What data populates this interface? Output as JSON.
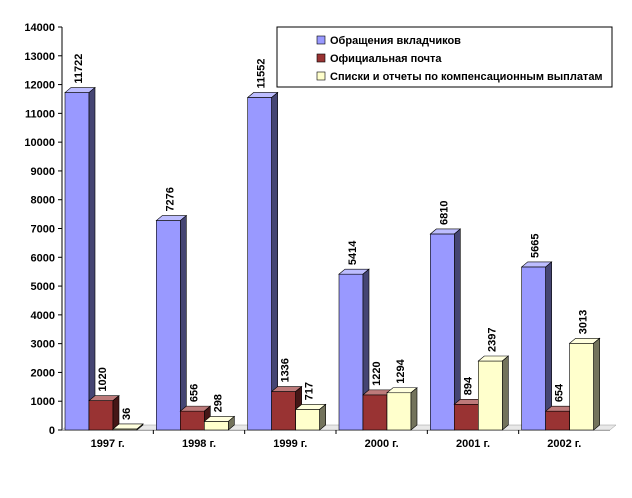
{
  "chart_data": {
    "type": "bar",
    "title": "",
    "xlabel": "",
    "ylabel": "",
    "categories": [
      "1997 г.",
      "1998 г.",
      "1999 г.",
      "2000 г.",
      "2001 г.",
      "2002 г."
    ],
    "ylim": [
      0,
      14000
    ],
    "yticks": [
      0,
      1000,
      2000,
      3000,
      4000,
      5000,
      6000,
      7000,
      8000,
      9000,
      10000,
      11000,
      12000,
      13000,
      14000
    ],
    "grid": false,
    "legend_position": "top-right",
    "style": "3d",
    "series": [
      {
        "name": "Обращения вкладчиков",
        "values": [
          11722,
          7276,
          11552,
          5414,
          6810,
          5665
        ],
        "color": "#9999ff"
      },
      {
        "name": "Официальная почта",
        "values": [
          1020,
          656,
          1336,
          1220,
          894,
          654
        ],
        "color": "#993333"
      },
      {
        "name": "Списки и отчеты по компенсационным выплатам",
        "values": [
          36,
          298,
          717,
          1294,
          2397,
          3013
        ],
        "color": "#ffffcc"
      }
    ]
  }
}
